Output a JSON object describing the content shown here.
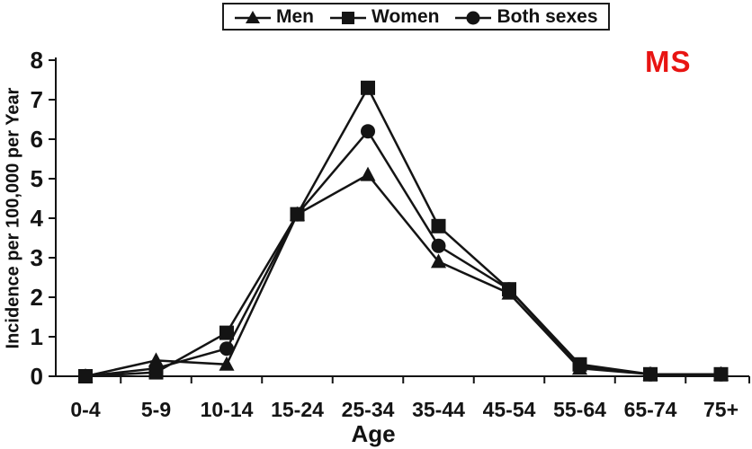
{
  "annotation": {
    "text": "MS",
    "color": "#e81412"
  },
  "colors": {
    "ink": "#141414",
    "background": "#ffffff"
  },
  "chart_data": {
    "type": "line",
    "title": "",
    "xlabel": "Age",
    "ylabel": "Incidence per 100,000 per Year",
    "categories": [
      "0-4",
      "5-9",
      "10-14",
      "15-24",
      "25-34",
      "35-44",
      "45-54",
      "55-64",
      "65-74",
      "75+"
    ],
    "yticks": [
      0,
      1,
      2,
      3,
      4,
      5,
      6,
      7,
      8
    ],
    "ylim": [
      0,
      8
    ],
    "grid": false,
    "legend_position": "top-center",
    "series": [
      {
        "name": "Men",
        "marker": "triangle",
        "values": [
          0,
          0.4,
          0.3,
          4.1,
          5.1,
          2.9,
          2.1,
          0.2,
          0.05,
          0.05
        ]
      },
      {
        "name": "Women",
        "marker": "square",
        "values": [
          0,
          0.1,
          1.1,
          4.1,
          7.3,
          3.8,
          2.2,
          0.3,
          0.05,
          0.05
        ]
      },
      {
        "name": "Both sexes",
        "marker": "circle",
        "values": [
          0,
          0.2,
          0.7,
          4.1,
          6.2,
          3.3,
          2.2,
          0.25,
          0.05,
          0.05
        ]
      }
    ]
  }
}
